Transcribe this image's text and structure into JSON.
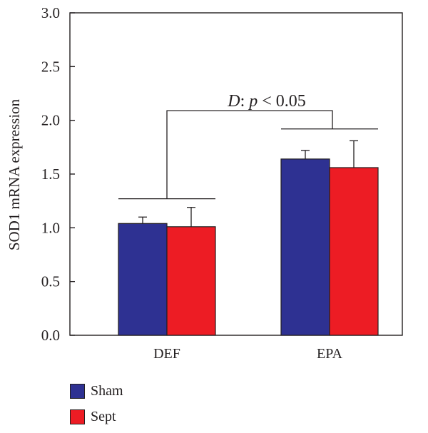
{
  "chart_data": {
    "type": "bar",
    "ylabel": "SOD1 mRNA expression",
    "ylim": [
      0,
      3.0
    ],
    "yticks": [
      "0.0",
      "0.5",
      "1.0",
      "1.5",
      "2.0",
      "2.5",
      "3.0"
    ],
    "categories": [
      "DEF",
      "EPA"
    ],
    "series": [
      {
        "name": "Sham",
        "color": "#2e3192",
        "values": [
          1.04,
          1.64
        ],
        "errors": [
          0.06,
          0.08
        ]
      },
      {
        "name": "Sept",
        "color": "#ed1c24",
        "values": [
          1.01,
          1.56
        ],
        "errors": [
          0.18,
          0.25
        ]
      }
    ],
    "annotation": {
      "var": "D",
      "sep": ":",
      "p": "p",
      "rest": " < 0.05"
    },
    "grid": false,
    "legend_position": "bottom-left"
  }
}
